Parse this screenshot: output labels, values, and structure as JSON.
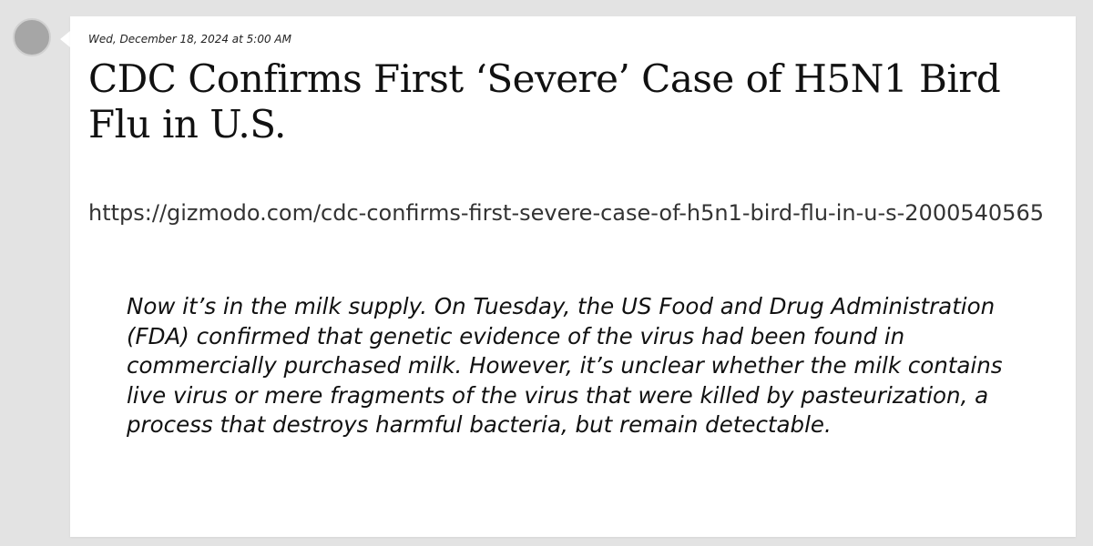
{
  "post": {
    "timestamp": "Wed, December 18, 2024 at 5:00 AM",
    "headline": "CDC Confirms First ‘Severe’ Case of H5N1 Bird Flu in U.S.",
    "url": "https://gizmodo.com/cdc-confirms-first-severe-case-of-h5n1-bird-flu-in-u-s-2000540565",
    "quote": "Now it’s in the milk supply. On Tuesday, the US Food and Drug Administration (FDA) confirmed that genetic evidence of the virus had been found in commercially purchased milk. However, it’s unclear whether the milk contains live virus or mere fragments of the virus that were killed by pasteurization, a process that destroys harmful bacteria, but remain detectable."
  },
  "colors": {
    "background": "#e3e3e3",
    "card": "#ffffff",
    "avatar": "#a6a6a6",
    "text": "#111111"
  }
}
